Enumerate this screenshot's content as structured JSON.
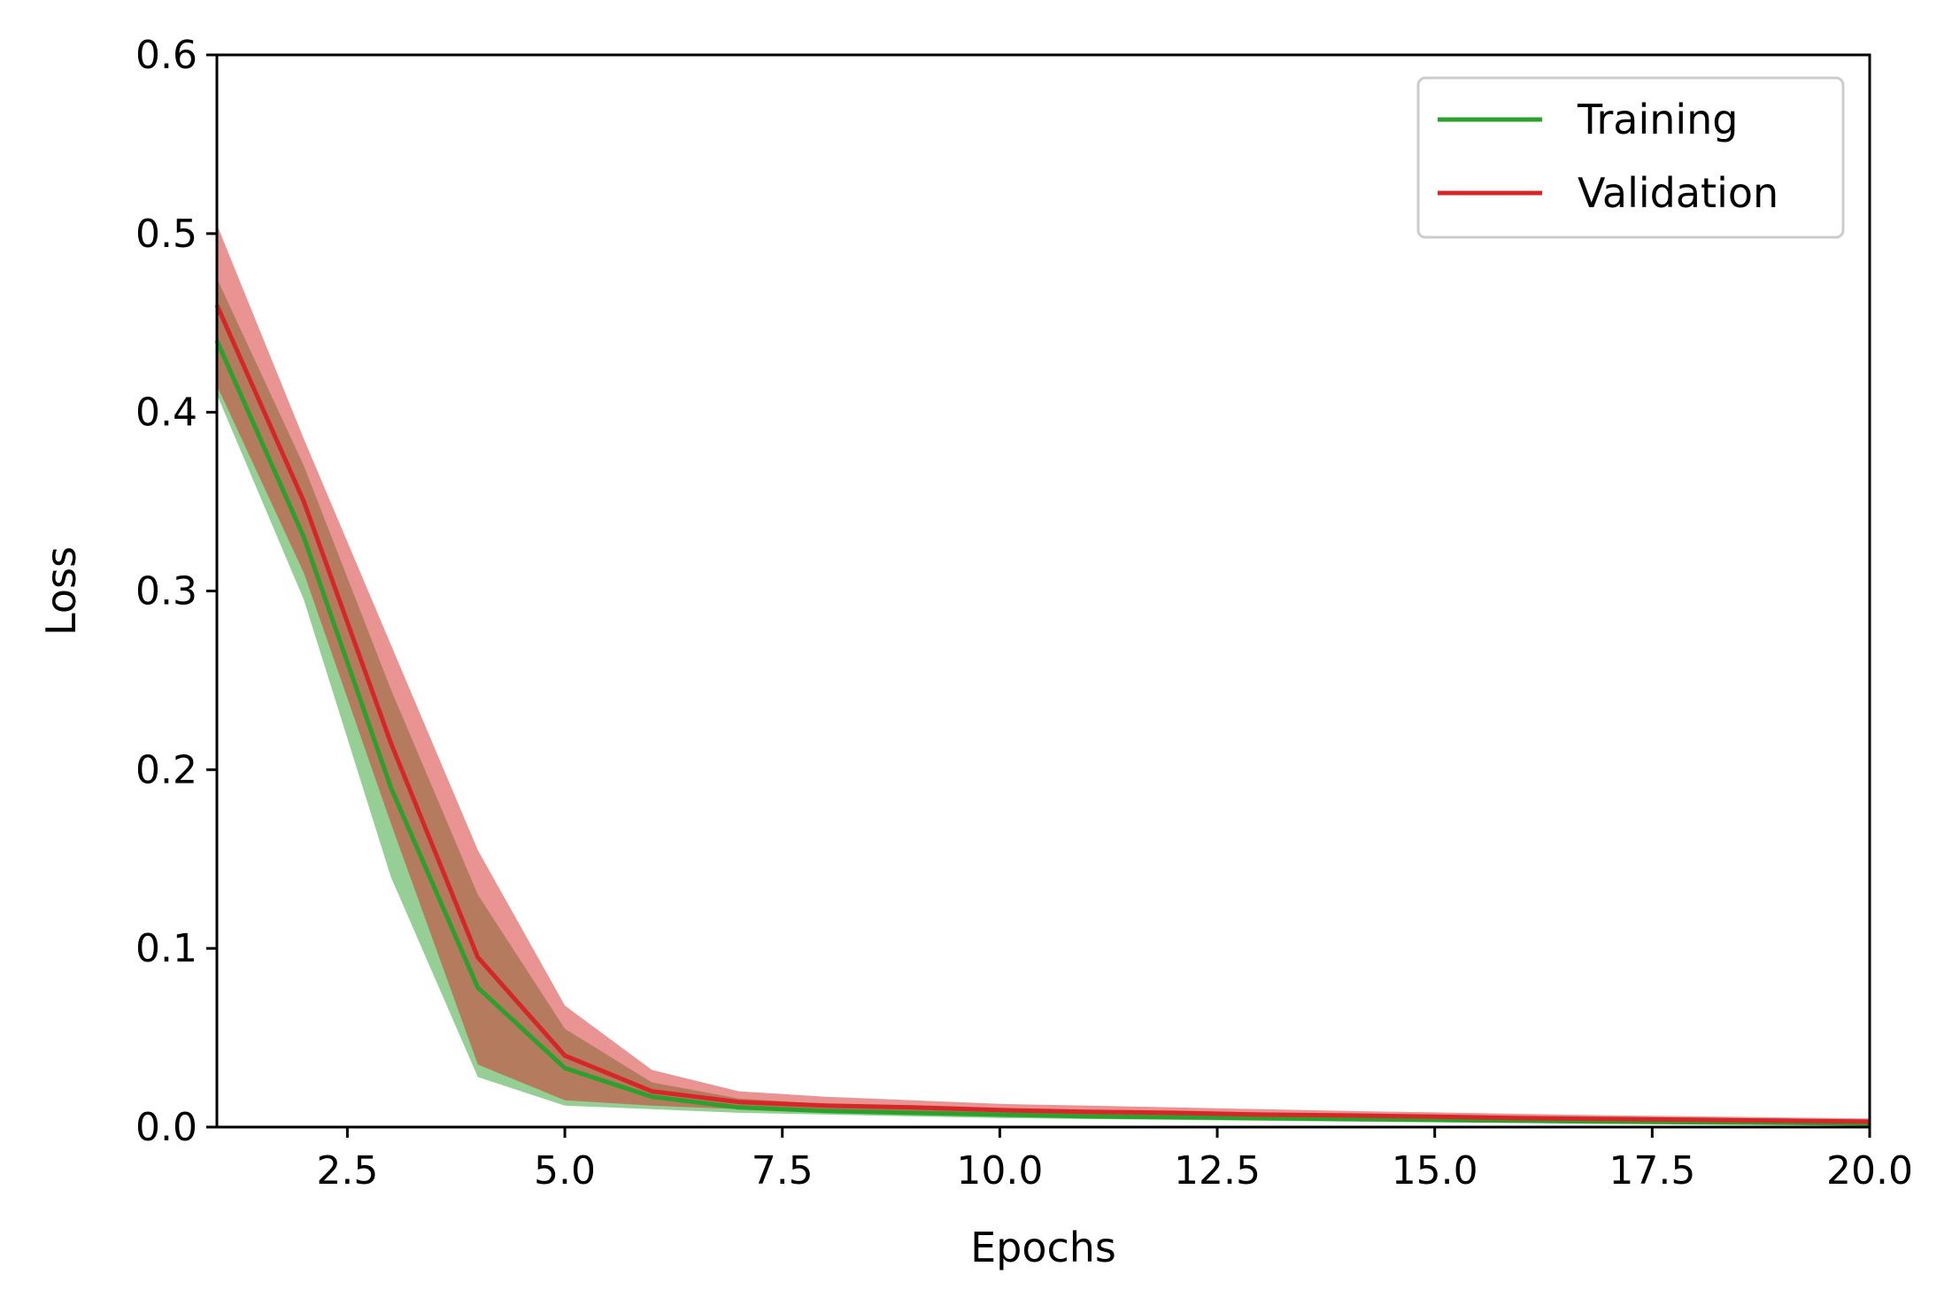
{
  "chart_data": {
    "type": "line",
    "xlabel": "Epochs",
    "ylabel": "Loss",
    "xlim": [
      1,
      20
    ],
    "ylim": [
      0,
      0.6
    ],
    "xticks": [
      2.5,
      5.0,
      7.5,
      10.0,
      12.5,
      15.0,
      17.5,
      20.0
    ],
    "xtick_labels": [
      "2.5",
      "5.0",
      "7.5",
      "10.0",
      "12.5",
      "15.0",
      "17.5",
      "20.0"
    ],
    "yticks": [
      0.0,
      0.1,
      0.2,
      0.3,
      0.4,
      0.5,
      0.6
    ],
    "ytick_labels": [
      "0.0",
      "0.1",
      "0.2",
      "0.3",
      "0.4",
      "0.5",
      "0.6"
    ],
    "grid": false,
    "legend_position": "top-right",
    "x": [
      1,
      2,
      3,
      4,
      5,
      6,
      7,
      8,
      9,
      10,
      11,
      12,
      13,
      14,
      15,
      16,
      17,
      18,
      19,
      20
    ],
    "series": [
      {
        "name": "Training",
        "color": "#2ca02c",
        "band_color": "#2ca02c",
        "values": [
          0.44,
          0.33,
          0.19,
          0.078,
          0.033,
          0.017,
          0.011,
          0.009,
          0.008,
          0.007,
          0.006,
          0.0055,
          0.005,
          0.0045,
          0.004,
          0.0035,
          0.003,
          0.0027,
          0.0024,
          0.002
        ],
        "lower": [
          0.41,
          0.295,
          0.14,
          0.028,
          0.012,
          0.01,
          0.008,
          0.007,
          0.006,
          0.005,
          0.0045,
          0.004,
          0.0035,
          0.003,
          0.0027,
          0.0024,
          0.002,
          0.0018,
          0.0015,
          0.0012
        ],
        "upper": [
          0.475,
          0.37,
          0.245,
          0.13,
          0.055,
          0.025,
          0.016,
          0.013,
          0.011,
          0.009,
          0.008,
          0.0072,
          0.0066,
          0.006,
          0.0054,
          0.0048,
          0.0042,
          0.0038,
          0.0034,
          0.003
        ]
      },
      {
        "name": "Validation",
        "color": "#d62728",
        "band_color": "#d62728",
        "values": [
          0.46,
          0.35,
          0.215,
          0.095,
          0.04,
          0.02,
          0.014,
          0.012,
          0.011,
          0.0095,
          0.0085,
          0.008,
          0.007,
          0.0065,
          0.0058,
          0.005,
          0.0045,
          0.004,
          0.0035,
          0.003
        ],
        "lower": [
          0.415,
          0.31,
          0.17,
          0.035,
          0.015,
          0.012,
          0.01,
          0.009,
          0.008,
          0.007,
          0.0065,
          0.006,
          0.005,
          0.0045,
          0.004,
          0.0035,
          0.003,
          0.0027,
          0.0024,
          0.002
        ],
        "upper": [
          0.505,
          0.385,
          0.27,
          0.155,
          0.068,
          0.032,
          0.02,
          0.017,
          0.015,
          0.013,
          0.012,
          0.011,
          0.01,
          0.009,
          0.0082,
          0.0074,
          0.0066,
          0.006,
          0.0054,
          0.0048
        ]
      }
    ]
  }
}
